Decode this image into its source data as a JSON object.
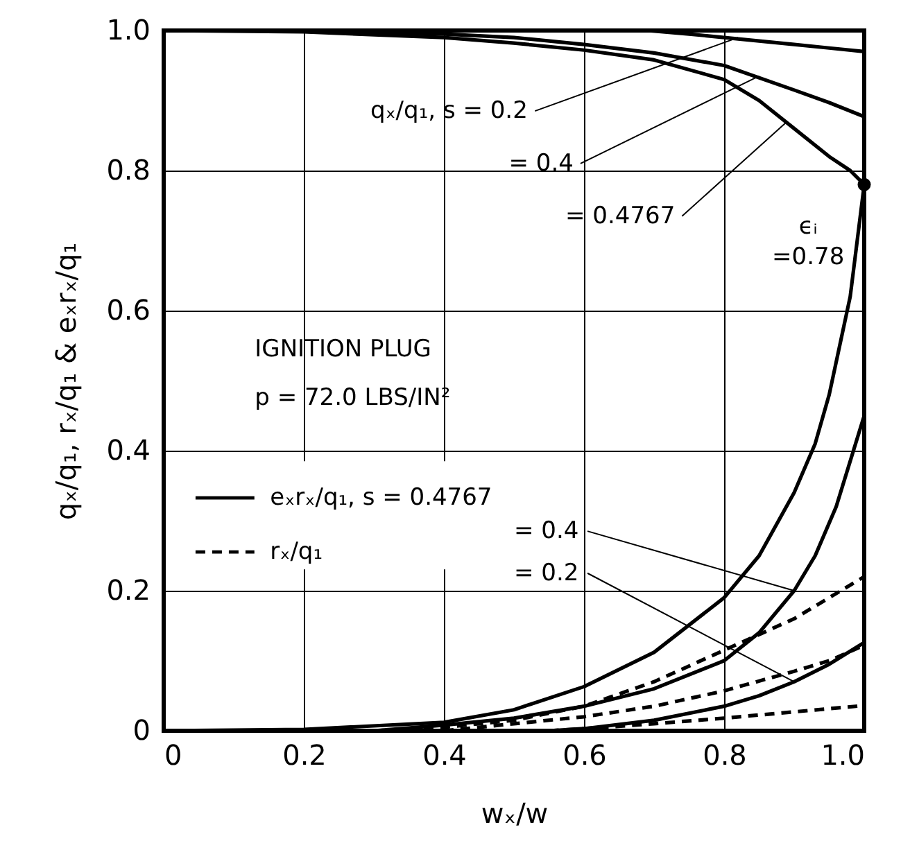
{
  "chart_data": {
    "type": "line",
    "xlabel": "wₓ/w",
    "ylabel": "qₓ/q₁, rₓ/q₁ & eₓrₓ/q₁",
    "xlim": [
      0,
      1
    ],
    "ylim": [
      0,
      1
    ],
    "xticks": [
      0,
      0.2,
      0.4,
      0.6,
      0.8,
      {
        "value": 1,
        "label": "1.0"
      }
    ],
    "yticks": [
      0,
      0.2,
      0.4,
      0.6,
      0.8,
      {
        "value": 1,
        "label": "1.0"
      }
    ],
    "grid": true,
    "legend": "bottom left",
    "series": [
      {
        "color": "#000000",
        "line_style": "solid",
        "x": [
          0.69,
          0.75,
          0.8,
          0.85,
          0.9,
          0.95,
          1.0
        ],
        "values": [
          1.0,
          0.995,
          0.99,
          0.985,
          0.98,
          0.975,
          0.97
        ]
      },
      {
        "color": "#000000",
        "line_style": "solid",
        "x": [
          0.2,
          0.4,
          0.5,
          0.6,
          0.7,
          0.8,
          0.9,
          0.95,
          1.0
        ],
        "values": [
          1.0,
          0.995,
          0.99,
          0.98,
          0.968,
          0.95,
          0.915,
          0.897,
          0.877
        ]
      },
      {
        "color": "#000000",
        "line_style": "solid",
        "x": [
          0,
          0.2,
          0.4,
          0.5,
          0.6,
          0.7,
          0.8,
          0.85,
          0.9,
          0.95,
          0.98,
          1.0
        ],
        "values": [
          1.0,
          0.998,
          0.99,
          0.982,
          0.972,
          0.958,
          0.93,
          0.9,
          0.86,
          0.82,
          0.8,
          0.78
        ]
      },
      {
        "name": "eₓrₓ/q₁, s = 0.4767",
        "color": "#000000",
        "line_style": "solid",
        "x": [
          0,
          0.2,
          0.4,
          0.5,
          0.6,
          0.7,
          0.8,
          0.85,
          0.9,
          0.93,
          0.95,
          0.98,
          1.0
        ],
        "values": [
          0,
          0.002,
          0.012,
          0.03,
          0.063,
          0.112,
          0.19,
          0.25,
          0.34,
          0.41,
          0.48,
          0.62,
          0.78
        ]
      },
      {
        "color": "#000000",
        "line_style": "solid",
        "x": [
          0.3,
          0.4,
          0.5,
          0.6,
          0.7,
          0.8,
          0.85,
          0.9,
          0.93,
          0.96,
          1.0
        ],
        "values": [
          0,
          0.008,
          0.018,
          0.035,
          0.06,
          0.1,
          0.14,
          0.2,
          0.25,
          0.32,
          0.45
        ]
      },
      {
        "color": "#000000",
        "line_style": "solid",
        "x": [
          0.55,
          0.6,
          0.7,
          0.8,
          0.85,
          0.9,
          0.95,
          1.0
        ],
        "values": [
          0,
          0.003,
          0.015,
          0.035,
          0.05,
          0.07,
          0.095,
          0.126
        ]
      },
      {
        "name": "rₓ/q₁",
        "color": "#000000",
        "line_style": "dashed",
        "x": [
          0.3,
          0.4,
          0.5,
          0.6,
          0.7,
          0.8,
          0.9,
          0.95,
          1.0
        ],
        "values": [
          0,
          0.005,
          0.015,
          0.035,
          0.07,
          0.115,
          0.16,
          0.19,
          0.22
        ]
      },
      {
        "color": "#000000",
        "line_style": "dashed",
        "x": [
          0.4,
          0.5,
          0.6,
          0.7,
          0.8,
          0.9,
          0.95,
          1.0
        ],
        "values": [
          0,
          0.01,
          0.02,
          0.035,
          0.057,
          0.085,
          0.1,
          0.122
        ]
      },
      {
        "color": "#000000",
        "line_style": "dashed",
        "x": [
          0.55,
          0.6,
          0.7,
          0.8,
          0.9,
          1.0
        ],
        "values": [
          0,
          0.003,
          0.01,
          0.018,
          0.027,
          0.036
        ]
      }
    ],
    "annotations": [
      {
        "text": "qₓ/q₁, s = 0.2",
        "x": 0.82,
        "y": 0.99
      },
      {
        "text": "= 0.4",
        "x": 0.85,
        "y": 0.935
      },
      {
        "text": "= 0.4767",
        "x": 0.89,
        "y": 0.87
      },
      {
        "text": "ϵᵢ\n=0.78",
        "x": 1.0,
        "y": 0.78
      },
      "IGNITION PLUG",
      "p = 72.0 LBS/IN²",
      {
        "text": "= 0.4",
        "x": 0.9,
        "y": 0.2
      },
      {
        "text": "= 0.2",
        "x": 0.9,
        "y": 0.07
      }
    ]
  }
}
